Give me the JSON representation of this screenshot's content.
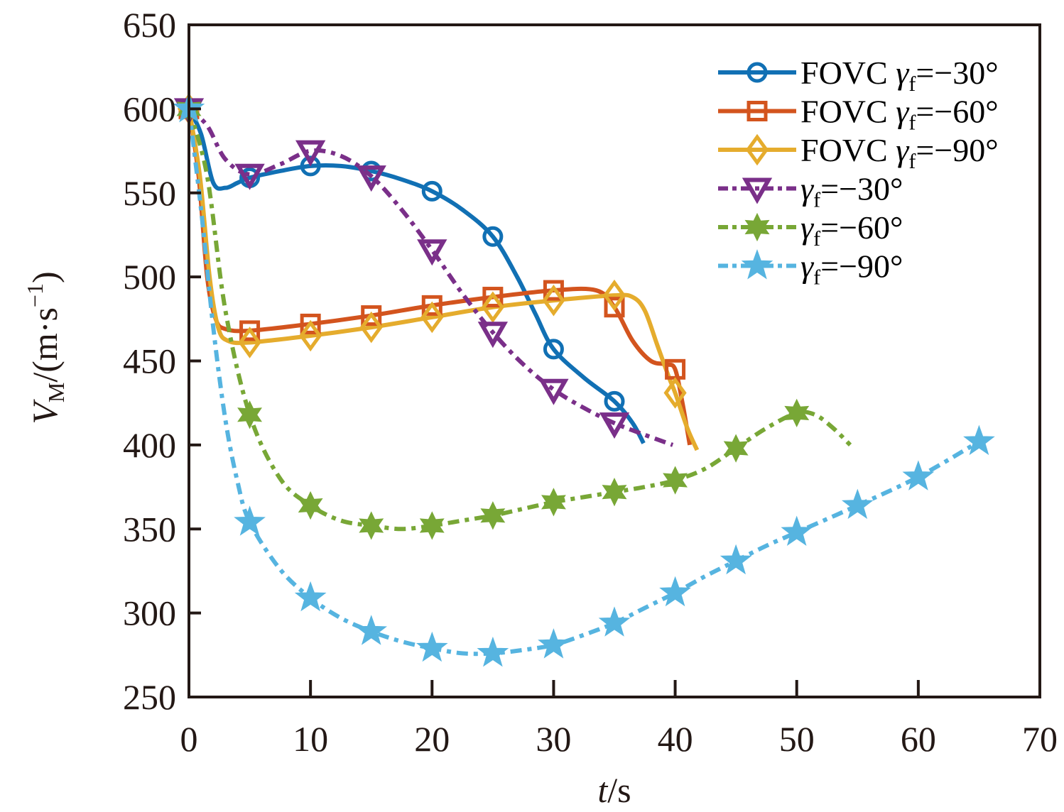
{
  "chart_data": {
    "type": "line",
    "title": "",
    "xlabel": "t/s",
    "xlabel_italic_part": "t",
    "xlabel_unit_part": "/s",
    "ylabel": "V_M/(m·s^-1)",
    "ylabel_parts": {
      "var": "V",
      "sub": "M",
      "unit_open": "/(m·s",
      "sup": "−1",
      "unit_close": ")"
    },
    "xlim": [
      0,
      70
    ],
    "ylim": [
      250,
      650
    ],
    "xticks": [
      0,
      10,
      20,
      30,
      40,
      50,
      60,
      70
    ],
    "yticks": [
      250,
      300,
      350,
      400,
      450,
      500,
      550,
      600,
      650
    ],
    "grid": false,
    "legend_position": "top-right",
    "series": [
      {
        "name": "FOVC γf=−30°",
        "legend_prefix": "FOVC ",
        "legend_value": "=−30°",
        "color": "#1170b4",
        "line_style": "solid",
        "marker": "circle",
        "markers": [
          [
            0,
            600
          ],
          [
            5,
            559
          ],
          [
            10,
            566
          ],
          [
            15,
            563
          ],
          [
            20,
            551
          ],
          [
            25,
            524
          ],
          [
            30,
            457
          ],
          [
            35,
            426
          ]
        ],
        "curve": [
          [
            0,
            600
          ],
          [
            1,
            585
          ],
          [
            2,
            556
          ],
          [
            3,
            553
          ],
          [
            4,
            556
          ],
          [
            5,
            559
          ],
          [
            7.5,
            563
          ],
          [
            10,
            566
          ],
          [
            12.5,
            566
          ],
          [
            15,
            563
          ],
          [
            17.5,
            558
          ],
          [
            20,
            551
          ],
          [
            22.5,
            540
          ],
          [
            25,
            524
          ],
          [
            27,
            500
          ],
          [
            28.5,
            478
          ],
          [
            30,
            457
          ],
          [
            32.5,
            440
          ],
          [
            35,
            426
          ],
          [
            36.5,
            413
          ],
          [
            37.4,
            401
          ]
        ]
      },
      {
        "name": "FOVC γf=−60°",
        "legend_prefix": "FOVC ",
        "legend_value": "=−60°",
        "color": "#d3541e",
        "line_style": "solid",
        "marker": "square",
        "markers": [
          [
            0,
            600
          ],
          [
            5,
            468
          ],
          [
            10,
            472
          ],
          [
            15,
            477
          ],
          [
            20,
            483
          ],
          [
            25,
            488
          ],
          [
            30,
            492
          ],
          [
            35,
            482
          ],
          [
            40,
            445
          ]
        ],
        "curve": [
          [
            0,
            600
          ],
          [
            0.8,
            560
          ],
          [
            1.5,
            500
          ],
          [
            2.2,
            475
          ],
          [
            3,
            469
          ],
          [
            5,
            468
          ],
          [
            10,
            472
          ],
          [
            15,
            477
          ],
          [
            20,
            483
          ],
          [
            25,
            488
          ],
          [
            30,
            492
          ],
          [
            33.5,
            492
          ],
          [
            35,
            482
          ],
          [
            36.5,
            462
          ],
          [
            38,
            450
          ],
          [
            39.3,
            448
          ],
          [
            40,
            445
          ],
          [
            40.6,
            425
          ],
          [
            41.2,
            400
          ]
        ]
      },
      {
        "name": "FOVC γf=−90°",
        "legend_prefix": "FOVC ",
        "legend_value": "=−90°",
        "color": "#e5ac2d",
        "line_style": "solid",
        "marker": "diamond",
        "markers": [
          [
            0,
            600
          ],
          [
            5,
            461
          ],
          [
            10,
            465
          ],
          [
            15,
            470
          ],
          [
            20,
            476
          ],
          [
            25,
            482
          ],
          [
            30,
            486
          ],
          [
            35,
            489
          ],
          [
            40,
            431
          ]
        ],
        "curve": [
          [
            0,
            600
          ],
          [
            0.9,
            560
          ],
          [
            1.7,
            500
          ],
          [
            2.4,
            470
          ],
          [
            3.2,
            462
          ],
          [
            5,
            461
          ],
          [
            10,
            465
          ],
          [
            15,
            470
          ],
          [
            20,
            476
          ],
          [
            25,
            482
          ],
          [
            30,
            486
          ],
          [
            35,
            489
          ],
          [
            36.5,
            488
          ],
          [
            37.5,
            480
          ],
          [
            38.5,
            460
          ],
          [
            39.5,
            440
          ],
          [
            40,
            431
          ],
          [
            41,
            410
          ],
          [
            41.8,
            397
          ]
        ]
      },
      {
        "name": "γf=−30°",
        "legend_prefix": "",
        "legend_value": "=−30°",
        "color": "#7a2f89",
        "line_style": "dashdot",
        "marker": "triangle-down",
        "markers": [
          [
            0,
            600
          ],
          [
            5,
            561
          ],
          [
            10,
            575
          ],
          [
            15,
            560
          ],
          [
            20,
            516
          ],
          [
            25,
            467
          ],
          [
            30,
            433
          ],
          [
            35,
            413
          ]
        ],
        "curve": [
          [
            0,
            600
          ],
          [
            1.5,
            590
          ],
          [
            3,
            570
          ],
          [
            5,
            561
          ],
          [
            7.5,
            567
          ],
          [
            10,
            575
          ],
          [
            12.5,
            572
          ],
          [
            15,
            560
          ],
          [
            17.5,
            540
          ],
          [
            20,
            516
          ],
          [
            22.5,
            490
          ],
          [
            25,
            467
          ],
          [
            27.5,
            448
          ],
          [
            30,
            433
          ],
          [
            32.5,
            422
          ],
          [
            35,
            413
          ],
          [
            37.5,
            406
          ],
          [
            39.8,
            400
          ]
        ]
      },
      {
        "name": "γf=−60°",
        "legend_prefix": "",
        "legend_value": "=−60°",
        "color": "#78a736",
        "line_style": "dashdot",
        "marker": "hexagram",
        "markers": [
          [
            0,
            600
          ],
          [
            5,
            418
          ],
          [
            10,
            364
          ],
          [
            15,
            352
          ],
          [
            20,
            352
          ],
          [
            25,
            358
          ],
          [
            30,
            366
          ],
          [
            35,
            372
          ],
          [
            40,
            379
          ],
          [
            45,
            398
          ],
          [
            50,
            419
          ]
        ],
        "curve": [
          [
            0,
            600
          ],
          [
            1.5,
            560
          ],
          [
            3,
            480
          ],
          [
            5,
            418
          ],
          [
            7.5,
            380
          ],
          [
            10,
            364
          ],
          [
            12.5,
            355
          ],
          [
            15,
            352
          ],
          [
            17.5,
            350
          ],
          [
            20,
            352
          ],
          [
            22.5,
            355
          ],
          [
            25,
            358
          ],
          [
            27.5,
            362
          ],
          [
            30,
            366
          ],
          [
            32.5,
            369
          ],
          [
            35,
            372
          ],
          [
            37.5,
            375
          ],
          [
            40,
            379
          ],
          [
            42.5,
            386
          ],
          [
            45,
            398
          ],
          [
            47.5,
            410
          ],
          [
            50,
            419
          ],
          [
            51.5,
            418
          ],
          [
            53,
            410
          ],
          [
            54.4,
            400
          ]
        ]
      },
      {
        "name": "γf=−90°",
        "legend_prefix": "",
        "legend_value": "=−90°",
        "color": "#56b4e0",
        "line_style": "dashdot",
        "marker": "star",
        "markers": [
          [
            0,
            600
          ],
          [
            5,
            354
          ],
          [
            10,
            309
          ],
          [
            15,
            289
          ],
          [
            20,
            279
          ],
          [
            25,
            276
          ],
          [
            30,
            281
          ],
          [
            35,
            294
          ],
          [
            40,
            312
          ],
          [
            45,
            331
          ],
          [
            50,
            348
          ],
          [
            55,
            364
          ],
          [
            60,
            381
          ],
          [
            65,
            402
          ]
        ],
        "curve": [
          [
            0,
            600
          ],
          [
            1,
            540
          ],
          [
            2,
            470
          ],
          [
            3,
            415
          ],
          [
            4,
            378
          ],
          [
            5,
            354
          ],
          [
            7.5,
            326
          ],
          [
            10,
            309
          ],
          [
            12.5,
            297
          ],
          [
            15,
            289
          ],
          [
            17.5,
            283
          ],
          [
            20,
            279
          ],
          [
            22.5,
            276
          ],
          [
            25,
            276
          ],
          [
            27.5,
            278
          ],
          [
            30,
            281
          ],
          [
            32.5,
            287
          ],
          [
            35,
            294
          ],
          [
            37.5,
            303
          ],
          [
            40,
            312
          ],
          [
            42.5,
            322
          ],
          [
            45,
            331
          ],
          [
            47.5,
            340
          ],
          [
            50,
            348
          ],
          [
            55,
            364
          ],
          [
            60,
            381
          ],
          [
            65,
            402
          ]
        ]
      }
    ]
  }
}
